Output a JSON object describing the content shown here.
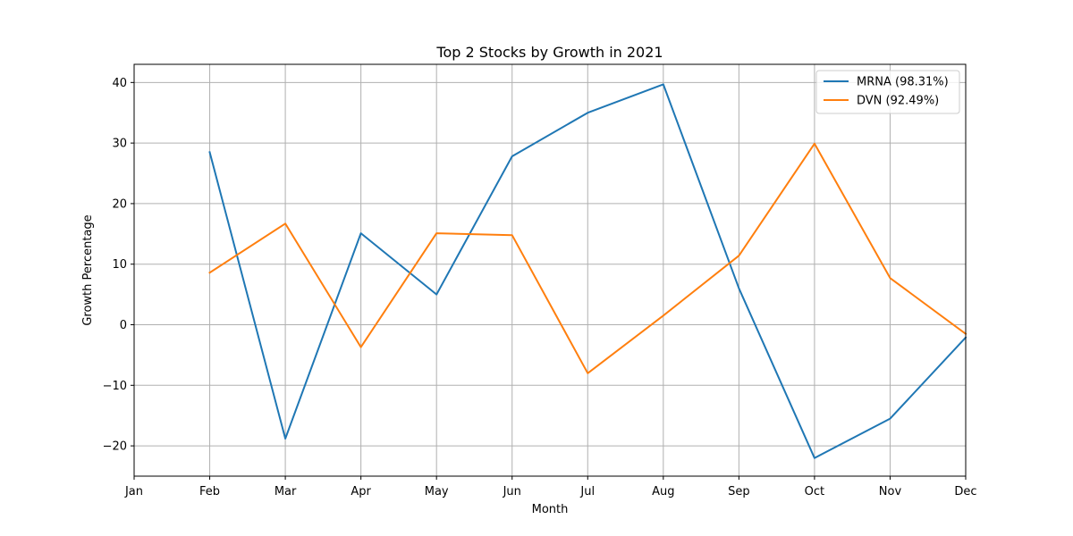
{
  "chart_data": {
    "type": "line",
    "title": "Top 2 Stocks by Growth in 2021",
    "xlabel": "Month",
    "ylabel": "Growth Percentage",
    "categories": [
      "Jan",
      "Feb",
      "Mar",
      "Apr",
      "May",
      "Jun",
      "Jul",
      "Aug",
      "Sep",
      "Oct",
      "Nov",
      "Dec"
    ],
    "ylim": [
      -25,
      43
    ],
    "yticks": [
      -20,
      -10,
      0,
      10,
      20,
      30,
      40
    ],
    "ytick_labels": [
      "−20",
      "−10",
      "0",
      "10",
      "20",
      "30",
      "40"
    ],
    "grid": true,
    "legend_position": "top-right",
    "series": [
      {
        "name": "MRNA (98.31%)",
        "color": "#1f77b4",
        "values": [
          null,
          28.5,
          -18.8,
          15.1,
          5.0,
          27.8,
          35.0,
          39.7,
          6.0,
          -22.0,
          -15.5,
          -2.1
        ]
      },
      {
        "name": "DVN (92.49%)",
        "color": "#ff7f0e",
        "values": [
          null,
          8.6,
          16.7,
          -3.7,
          15.1,
          14.8,
          -8.0,
          1.5,
          11.4,
          29.9,
          7.7,
          -1.5
        ]
      }
    ]
  }
}
